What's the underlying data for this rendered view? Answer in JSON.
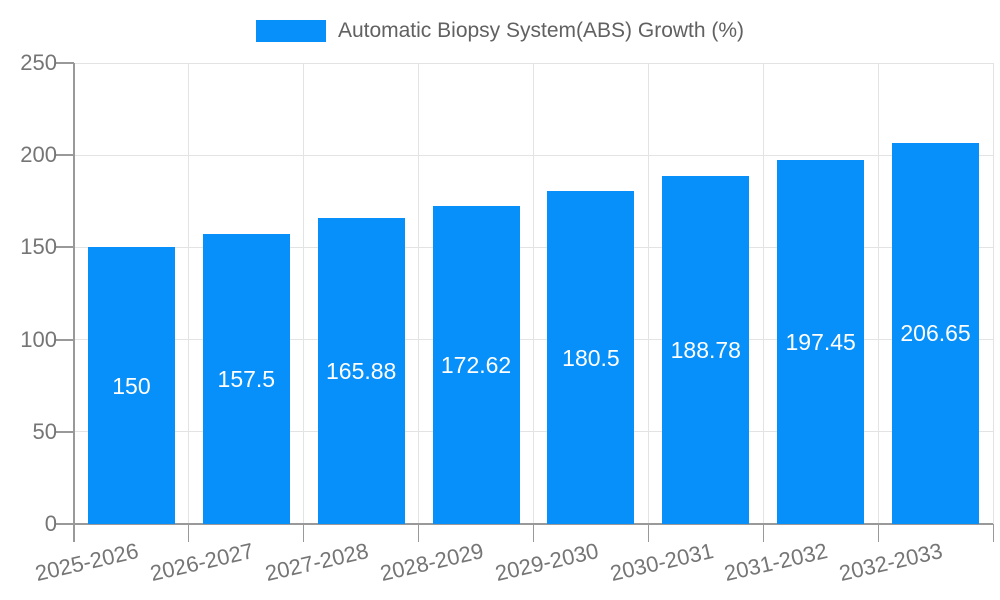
{
  "legend": {
    "label": "Automatic Biopsy System(ABS) Growth (%)"
  },
  "chart_data": {
    "type": "bar",
    "title": "",
    "categories": [
      "2025-2026",
      "2026-2027",
      "2027-2028",
      "2028-2029",
      "2029-2030",
      "2030-2031",
      "2031-2032",
      "2032-2033"
    ],
    "series": [
      {
        "name": "Automatic Biopsy System(ABS) Growth (%)",
        "values": [
          150,
          157.5,
          165.88,
          172.62,
          180.5,
          188.78,
          197.45,
          206.65
        ]
      }
    ],
    "bar_value_labels": [
      "150",
      "157.5",
      "165.88",
      "172.62",
      "180.5",
      "188.78",
      "197.45",
      "206.65"
    ],
    "xlabel": "",
    "ylabel": "",
    "ylim": [
      0,
      250
    ],
    "yticks": [
      0,
      50,
      100,
      150,
      200,
      250
    ],
    "grid": true,
    "legend_position": "top-center",
    "x_label_rotation_deg": -13
  },
  "colors": {
    "bar": "#0890FA",
    "axis": "#999999",
    "grid": "#E3E3E3",
    "tick_label": "#757575",
    "legend_text": "#616161",
    "value_label": "#FFFFFF",
    "background": "#FFFFFF"
  }
}
